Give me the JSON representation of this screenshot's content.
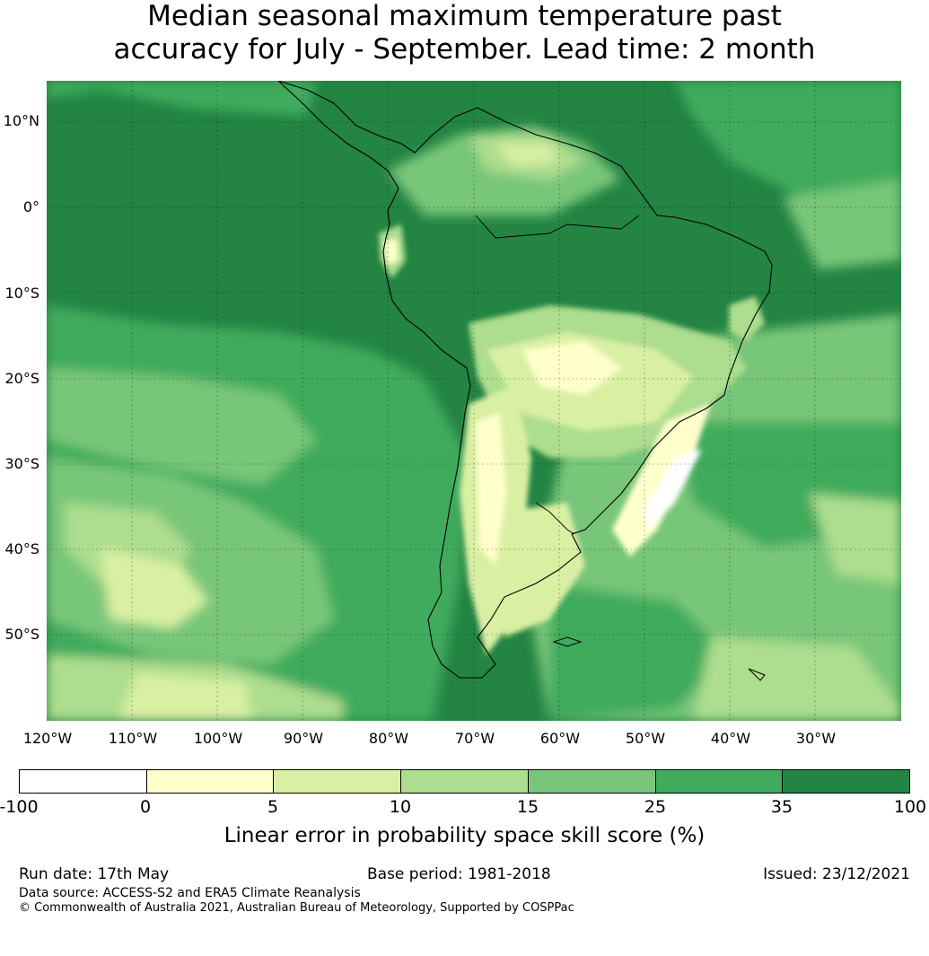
{
  "title": {
    "line1": "Median seasonal maximum temperature past",
    "line2": "accuracy for July - September. Lead time: 2 month"
  },
  "map": {
    "lat_ticks": [
      "10°N",
      "0°",
      "10°S",
      "20°S",
      "30°S",
      "40°S",
      "50°S"
    ],
    "lon_ticks": [
      "120°W",
      "110°W",
      "100°W",
      "90°W",
      "80°W",
      "70°W",
      "60°W",
      "50°W",
      "40°W",
      "30°W"
    ],
    "lon_range": [
      -125,
      -25
    ],
    "lat_range": [
      -60,
      15
    ],
    "region": "South America"
  },
  "colorbar": {
    "ticks": [
      "-100",
      "0",
      "5",
      "10",
      "15",
      "25",
      "35",
      "100"
    ],
    "colors": [
      "#ffffff",
      "#ffffcc",
      "#d9f0a3",
      "#addd8e",
      "#78c679",
      "#41ab5d",
      "#238443"
    ],
    "label": "Linear error in probability space skill score (%)"
  },
  "footer": {
    "run_date": "Run date: 17th May",
    "base_period": "Base period: 1981-2018",
    "issued": "Issued: 23/12/2021",
    "data_source": "Data source: ACCESS-S2 and ERA5 Climate Reanalysis",
    "copyright": "© Commonwealth of Australia 2021, Australian Bureau of Meteorology, Supported by COSPPac"
  }
}
